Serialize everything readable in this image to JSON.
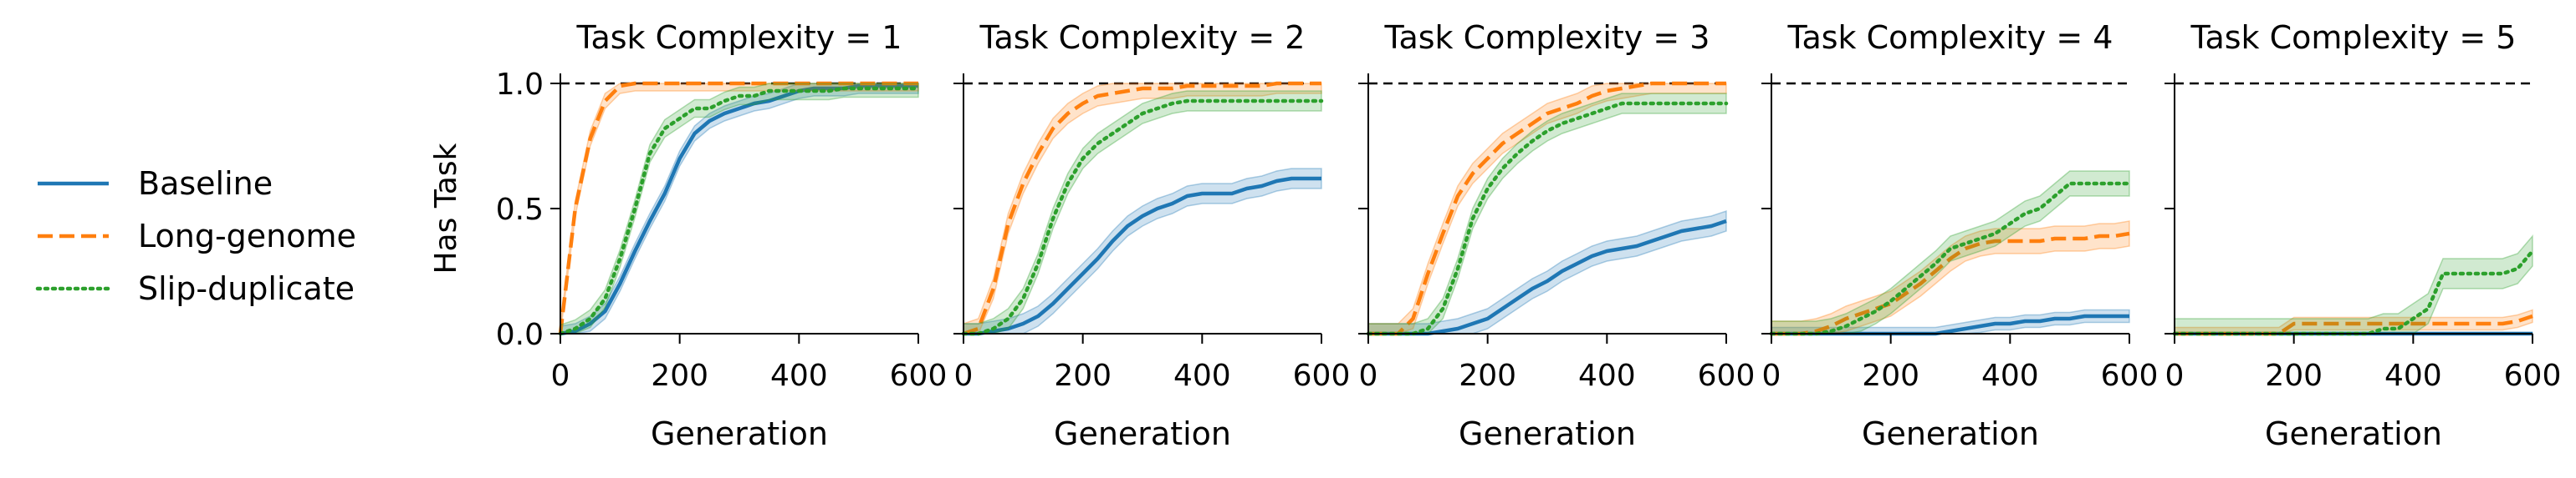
{
  "chart_data": {
    "type": "line",
    "layout": "small-multiples",
    "ylabel": "Has Task",
    "xlabel": "Generation",
    "xlim": [
      0,
      600
    ],
    "ylim": [
      0,
      1
    ],
    "xticks": [
      0,
      200,
      400,
      600
    ],
    "yticks": [
      0.0,
      0.5,
      1.0
    ],
    "ytick_labels": [
      "0.0",
      "0.5",
      "1.0"
    ],
    "reference_line": {
      "y": 1.0,
      "style": "dashed",
      "color": "#000000"
    },
    "legend": {
      "placement": "left",
      "entries": [
        {
          "name": "Baseline",
          "color": "#1f77b4",
          "dash": "solid"
        },
        {
          "name": "Long-genome",
          "color": "#ff7f0e",
          "dash": "dashed"
        },
        {
          "name": "Slip-duplicate",
          "color": "#2ca02c",
          "dash": "dotted"
        }
      ]
    },
    "x": [
      0,
      25,
      50,
      75,
      100,
      125,
      150,
      175,
      200,
      225,
      250,
      275,
      300,
      325,
      350,
      375,
      400,
      425,
      450,
      475,
      500,
      525,
      550,
      575,
      600
    ],
    "panels": [
      {
        "title": "Task Complexity = 1",
        "series": [
          {
            "name": "Baseline",
            "values": [
              0,
              0.01,
              0.04,
              0.09,
              0.2,
              0.33,
              0.45,
              0.56,
              0.7,
              0.8,
              0.85,
              0.88,
              0.9,
              0.92,
              0.93,
              0.95,
              0.97,
              0.98,
              0.98,
              0.98,
              0.99,
              0.99,
              0.99,
              0.99,
              0.99
            ],
            "band": 0.03
          },
          {
            "name": "Long-genome",
            "values": [
              0,
              0.5,
              0.78,
              0.93,
              0.99,
              1,
              1,
              1,
              1,
              1,
              1,
              1,
              1,
              1,
              1,
              1,
              1,
              1,
              1,
              1,
              1,
              1,
              1,
              1,
              1
            ],
            "band": 0.03
          },
          {
            "name": "Slip-duplicate",
            "values": [
              0,
              0.02,
              0.06,
              0.14,
              0.3,
              0.5,
              0.72,
              0.82,
              0.86,
              0.9,
              0.9,
              0.93,
              0.95,
              0.95,
              0.97,
              0.97,
              0.97,
              0.97,
              0.97,
              0.98,
              0.98,
              0.98,
              0.98,
              0.98,
              0.98
            ],
            "band": 0.035
          }
        ]
      },
      {
        "title": "Task Complexity = 2",
        "series": [
          {
            "name": "Baseline",
            "values": [
              0,
              0,
              0.01,
              0.02,
              0.04,
              0.07,
              0.12,
              0.18,
              0.24,
              0.3,
              0.37,
              0.43,
              0.47,
              0.5,
              0.52,
              0.55,
              0.56,
              0.56,
              0.56,
              0.58,
              0.59,
              0.61,
              0.62,
              0.62,
              0.62
            ],
            "band": 0.04
          },
          {
            "name": "Long-genome",
            "values": [
              0,
              0.02,
              0.18,
              0.44,
              0.6,
              0.72,
              0.82,
              0.88,
              0.92,
              0.95,
              0.96,
              0.97,
              0.98,
              0.98,
              0.98,
              0.99,
              0.99,
              0.99,
              0.99,
              0.99,
              0.99,
              1,
              1,
              1,
              1
            ],
            "band": 0.04
          },
          {
            "name": "Slip-duplicate",
            "values": [
              0,
              0,
              0.02,
              0.06,
              0.14,
              0.28,
              0.46,
              0.6,
              0.7,
              0.76,
              0.8,
              0.84,
              0.88,
              0.9,
              0.92,
              0.93,
              0.93,
              0.93,
              0.93,
              0.93,
              0.93,
              0.93,
              0.93,
              0.93,
              0.93
            ],
            "band": 0.04
          }
        ]
      },
      {
        "title": "Task Complexity = 3",
        "series": [
          {
            "name": "Baseline",
            "values": [
              0,
              0,
              0,
              0,
              0,
              0.01,
              0.02,
              0.04,
              0.06,
              0.1,
              0.14,
              0.18,
              0.21,
              0.25,
              0.28,
              0.31,
              0.33,
              0.34,
              0.35,
              0.37,
              0.39,
              0.41,
              0.42,
              0.43,
              0.45
            ],
            "band": 0.04
          },
          {
            "name": "Long-genome",
            "values": [
              0,
              0,
              0,
              0.06,
              0.24,
              0.4,
              0.55,
              0.64,
              0.7,
              0.76,
              0.8,
              0.84,
              0.88,
              0.9,
              0.92,
              0.95,
              0.97,
              0.98,
              0.99,
              1,
              1,
              1,
              1,
              1,
              1
            ],
            "band": 0.04
          },
          {
            "name": "Slip-duplicate",
            "values": [
              0,
              0,
              0,
              0,
              0.02,
              0.1,
              0.26,
              0.46,
              0.58,
              0.66,
              0.72,
              0.77,
              0.81,
              0.84,
              0.86,
              0.88,
              0.9,
              0.92,
              0.92,
              0.92,
              0.92,
              0.92,
              0.92,
              0.92,
              0.92
            ],
            "band": 0.04
          }
        ]
      },
      {
        "title": "Task Complexity = 4",
        "series": [
          {
            "name": "Baseline",
            "values": [
              0,
              0,
              0,
              0,
              0,
              0,
              0,
              0,
              0,
              0,
              0,
              0,
              0.01,
              0.02,
              0.03,
              0.04,
              0.04,
              0.05,
              0.05,
              0.06,
              0.06,
              0.07,
              0.07,
              0.07,
              0.07
            ],
            "band": 0.025
          },
          {
            "name": "Long-genome",
            "values": [
              0,
              0,
              0,
              0.01,
              0.03,
              0.06,
              0.08,
              0.1,
              0.12,
              0.16,
              0.2,
              0.25,
              0.3,
              0.34,
              0.36,
              0.37,
              0.37,
              0.37,
              0.37,
              0.38,
              0.38,
              0.38,
              0.39,
              0.39,
              0.4
            ],
            "band": 0.05
          },
          {
            "name": "Slip-duplicate",
            "values": [
              0,
              0,
              0,
              0,
              0.01,
              0.03,
              0.06,
              0.09,
              0.13,
              0.18,
              0.23,
              0.28,
              0.34,
              0.36,
              0.38,
              0.4,
              0.44,
              0.48,
              0.5,
              0.55,
              0.6,
              0.6,
              0.6,
              0.6,
              0.6
            ],
            "band": 0.05
          }
        ]
      },
      {
        "title": "Task Complexity = 5",
        "series": [
          {
            "name": "Baseline",
            "values": [
              0,
              0,
              0,
              0,
              0,
              0,
              0,
              0,
              0,
              0,
              0,
              0,
              0,
              0,
              0,
              0,
              0,
              0,
              0,
              0,
              0,
              0,
              0,
              0,
              0
            ],
            "band": 0.005
          },
          {
            "name": "Long-genome",
            "values": [
              0,
              0,
              0,
              0,
              0,
              0,
              0,
              0,
              0.04,
              0.04,
              0.04,
              0.04,
              0.04,
              0.04,
              0.04,
              0.04,
              0.04,
              0.04,
              0.04,
              0.04,
              0.04,
              0.04,
              0.04,
              0.05,
              0.07
            ],
            "band": 0.025
          },
          {
            "name": "Slip-duplicate",
            "values": [
              0,
              0,
              0,
              0,
              0,
              0,
              0,
              0,
              0,
              0,
              0,
              0,
              0,
              0,
              0.02,
              0.02,
              0.06,
              0.1,
              0.24,
              0.24,
              0.24,
              0.24,
              0.24,
              0.26,
              0.33
            ],
            "band": 0.06
          }
        ]
      }
    ]
  }
}
